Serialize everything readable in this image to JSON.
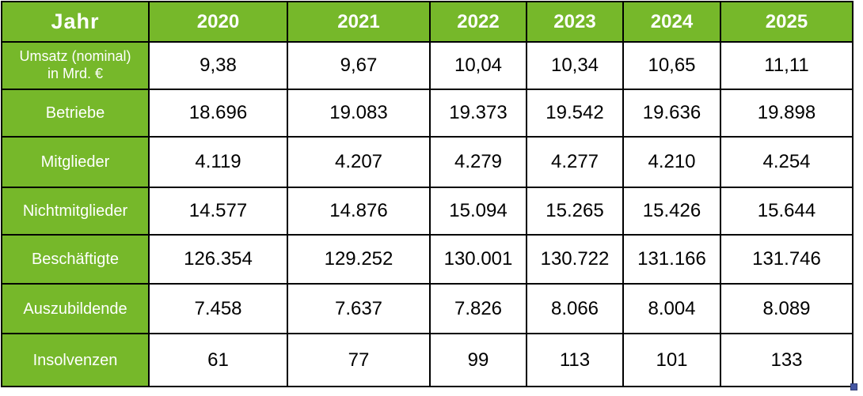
{
  "chart_data": {
    "type": "table",
    "title": "",
    "corner_label": "Jahr",
    "categories": [
      "2020",
      "2021",
      "2022",
      "2023",
      "2024",
      "2025"
    ],
    "series": [
      {
        "name": "Umsatz (nominal) in Mrd. €",
        "values": [
          9.38,
          9.67,
          10.04,
          10.34,
          10.65,
          11.11
        ]
      },
      {
        "name": "Betriebe",
        "values": [
          18696,
          19083,
          19373,
          19542,
          19636,
          19898
        ]
      },
      {
        "name": "Mitglieder",
        "values": [
          4119,
          4207,
          4279,
          4277,
          4210,
          4254
        ]
      },
      {
        "name": "Nichtmitglieder",
        "values": [
          14577,
          14876,
          15094,
          15265,
          15426,
          15644
        ]
      },
      {
        "name": "Beschäftigte",
        "values": [
          126354,
          129252,
          130001,
          130722,
          131166,
          131746
        ]
      },
      {
        "name": "Auszubildende",
        "values": [
          7458,
          7637,
          7826,
          8066,
          8004,
          8089
        ]
      },
      {
        "name": "Insolvenzen",
        "values": [
          61,
          77,
          99,
          113,
          101,
          133
        ]
      }
    ],
    "layout": {
      "header_fill": "#76B82A",
      "header_text": "#ffffff",
      "grid": "solid-black"
    }
  },
  "table": {
    "corner_label": "Jahr",
    "years": [
      "2020",
      "2021",
      "2022",
      "2023",
      "2024",
      "2025"
    ],
    "rows": [
      {
        "label_line1": "Umsatz (nominal)",
        "label_line2": "in Mrd. €",
        "values": [
          "9,38",
          "9,67",
          "10,04",
          "10,34",
          "10,65",
          "11,11"
        ]
      },
      {
        "label_line1": "Betriebe",
        "label_line2": "",
        "values": [
          "18.696",
          "19.083",
          "19.373",
          "19.542",
          "19.636",
          "19.898"
        ]
      },
      {
        "label_line1": "Mitglieder",
        "label_line2": "",
        "values": [
          "4.119",
          "4.207",
          "4.279",
          "4.277",
          "4.210",
          "4.254"
        ]
      },
      {
        "label_line1": "Nichtmitglieder",
        "label_line2": "",
        "values": [
          "14.577",
          "14.876",
          "15.094",
          "15.265",
          "15.426",
          "15.644"
        ]
      },
      {
        "label_line1": "Beschäftigte",
        "label_line2": "",
        "values": [
          "126.354",
          "129.252",
          "130.001",
          "130.722",
          "131.166",
          "131.746"
        ]
      },
      {
        "label_line1": "Auszubildende",
        "label_line2": "",
        "values": [
          "7.458",
          "7.637",
          "7.826",
          "8.066",
          "8.004",
          "8.089"
        ]
      },
      {
        "label_line1": "Insolvenzen",
        "label_line2": "",
        "values": [
          "61",
          "77",
          "99",
          "113",
          "101",
          "133"
        ]
      }
    ]
  },
  "icons": {
    "table_resize_handle": "table-resize-handle"
  },
  "colors": {
    "header_green": "#76B82A",
    "border_black": "#000000",
    "text_on_green": "#FFFFFF",
    "data_text": "#000000",
    "resize_handle_blue": "#4557A2"
  }
}
